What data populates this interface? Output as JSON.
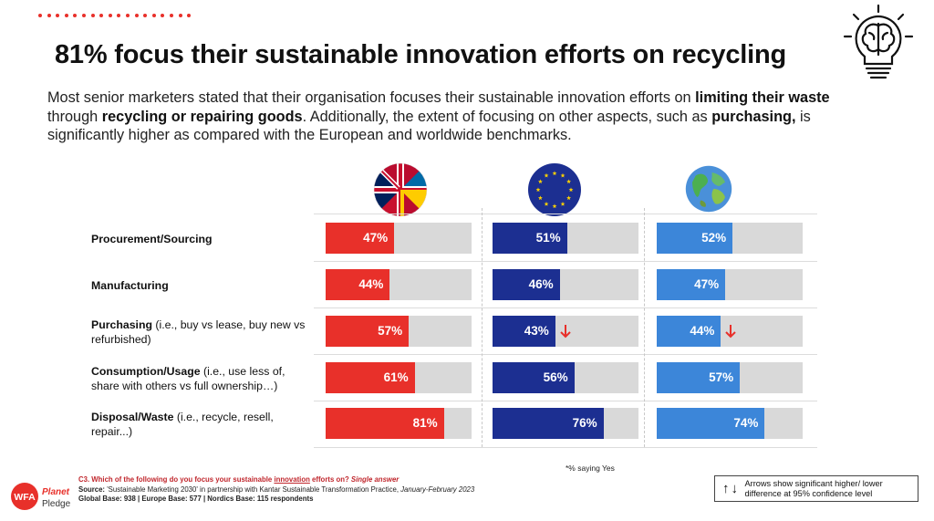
{
  "title": "81% focus their sustainable innovation efforts on recycling",
  "intro": [
    {
      "t": "Most senior marketers stated that their organisation focuses their sustainable innovation efforts on ",
      "b": false
    },
    {
      "t": "limiting their waste",
      "b": true
    },
    {
      "t": " through ",
      "b": false
    },
    {
      "t": "recycling or repairing goods",
      "b": true
    },
    {
      "t": ". Additionally, the extent of focusing on other aspects, such as ",
      "b": false
    },
    {
      "t": "purchasing,",
      "b": true
    },
    {
      "t": " is significantly higher as compared with the European and worldwide benchmarks.",
      "b": false
    }
  ],
  "icons": {
    "header": "lightbulb-brain-icon",
    "group1": "nordics-flags-icon",
    "group2": "eu-flag-icon",
    "group3": "globe-icon",
    "arrow": "arrow-down-icon"
  },
  "colors": {
    "nordics": "#e8302a",
    "europe": "#1c2f91",
    "global": "#3c86d9",
    "track": "#d9d9d9",
    "arrow": "#e8302a",
    "accent": "#c0272d"
  },
  "rows": [
    {
      "label": "Procurement/Sourcing",
      "sub": ""
    },
    {
      "label": "Manufacturing",
      "sub": ""
    },
    {
      "label": "Purchasing",
      "sub": " (i.e., buy vs lease, buy new vs refurbished)"
    },
    {
      "label": "Consumption/Usage",
      "sub": " (i.e., use less of, share with others vs full ownership…)"
    },
    {
      "label": "Disposal/Waste",
      "sub": " (i.e., recycle, resell, repair...)"
    }
  ],
  "chart_data": {
    "type": "bar",
    "orientation": "horizontal",
    "categories": [
      "Procurement/Sourcing",
      "Manufacturing",
      "Purchasing",
      "Consumption/Usage",
      "Disposal/Waste"
    ],
    "xlim": [
      0,
      100
    ],
    "series": [
      {
        "values": [
          47,
          44,
          57,
          61,
          81
        ],
        "labels": [
          "47%",
          "44%",
          "57%",
          "61%",
          "81%"
        ],
        "sig_lower": [
          false,
          false,
          false,
          false,
          false
        ]
      },
      {
        "values": [
          51,
          46,
          43,
          56,
          76
        ],
        "labels": [
          "51%",
          "46%",
          "43%",
          "56%",
          "76%"
        ],
        "sig_lower": [
          false,
          false,
          true,
          false,
          false
        ]
      },
      {
        "values": [
          52,
          47,
          44,
          57,
          74
        ],
        "labels": [
          "52%",
          "47%",
          "44%",
          "57%",
          "74%"
        ],
        "sig_lower": [
          false,
          false,
          true,
          false,
          false
        ]
      }
    ],
    "note": "*% saying Yes"
  },
  "footer": {
    "q_prefix": "C3. Which of the following do you focus your sustainable ",
    "q_underline": "innovation",
    "q_mid": " efforts on? ",
    "q_italic": "Single answer",
    "source_label": "Source:",
    "source_text": " 'Sustainable Marketing 2030' in partnership with Kantar Sustainable Transformation Practice, ",
    "source_date": "January-February 2023",
    "base": "Global Base: 938 | Europe Base: 577 | Nordics Base: 115 respondents"
  },
  "logo": {
    "wfa": "WFA",
    "planet": "Planet",
    "pledge": "Pledge"
  },
  "legend": {
    "arrows": "↑↓",
    "text": "Arrows show significant higher/ lower difference at 95% confidence level"
  }
}
